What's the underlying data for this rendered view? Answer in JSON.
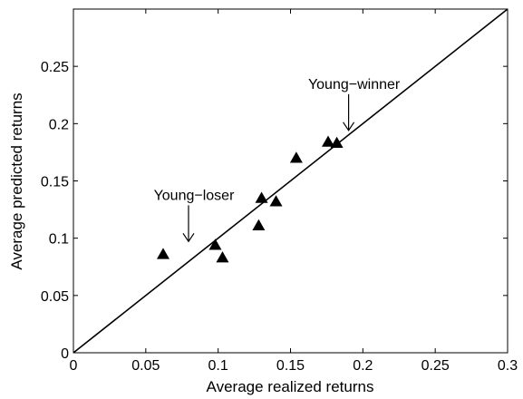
{
  "chart_data": {
    "type": "scatter",
    "xlabel": "Average realized returns",
    "ylabel": "Average predicted returns",
    "xlim": [
      0,
      0.3
    ],
    "ylim": [
      0,
      0.3
    ],
    "x_ticks": [
      "0",
      "0.05",
      "0.1",
      "0.15",
      "0.2",
      "0.25",
      "0.3"
    ],
    "y_ticks": [
      "0",
      "0.05",
      "0.1",
      "0.15",
      "0.2",
      "0.25"
    ],
    "grid": false,
    "marker": "triangle",
    "reference_line": {
      "type": "y=x",
      "from": [
        0,
        0
      ],
      "to": [
        0.3,
        0.3
      ]
    },
    "points": [
      {
        "x": 0.062,
        "y": 0.086
      },
      {
        "x": 0.098,
        "y": 0.094
      },
      {
        "x": 0.103,
        "y": 0.083
      },
      {
        "x": 0.128,
        "y": 0.111
      },
      {
        "x": 0.13,
        "y": 0.135
      },
      {
        "x": 0.14,
        "y": 0.132
      },
      {
        "x": 0.154,
        "y": 0.17
      },
      {
        "x": 0.176,
        "y": 0.184
      },
      {
        "x": 0.182,
        "y": 0.183
      }
    ],
    "annotations": [
      {
        "text": "Young−loser",
        "x": 0.062,
        "y": 0.086
      },
      {
        "text": "Young−winner",
        "x": 0.182,
        "y": 0.183
      }
    ]
  }
}
